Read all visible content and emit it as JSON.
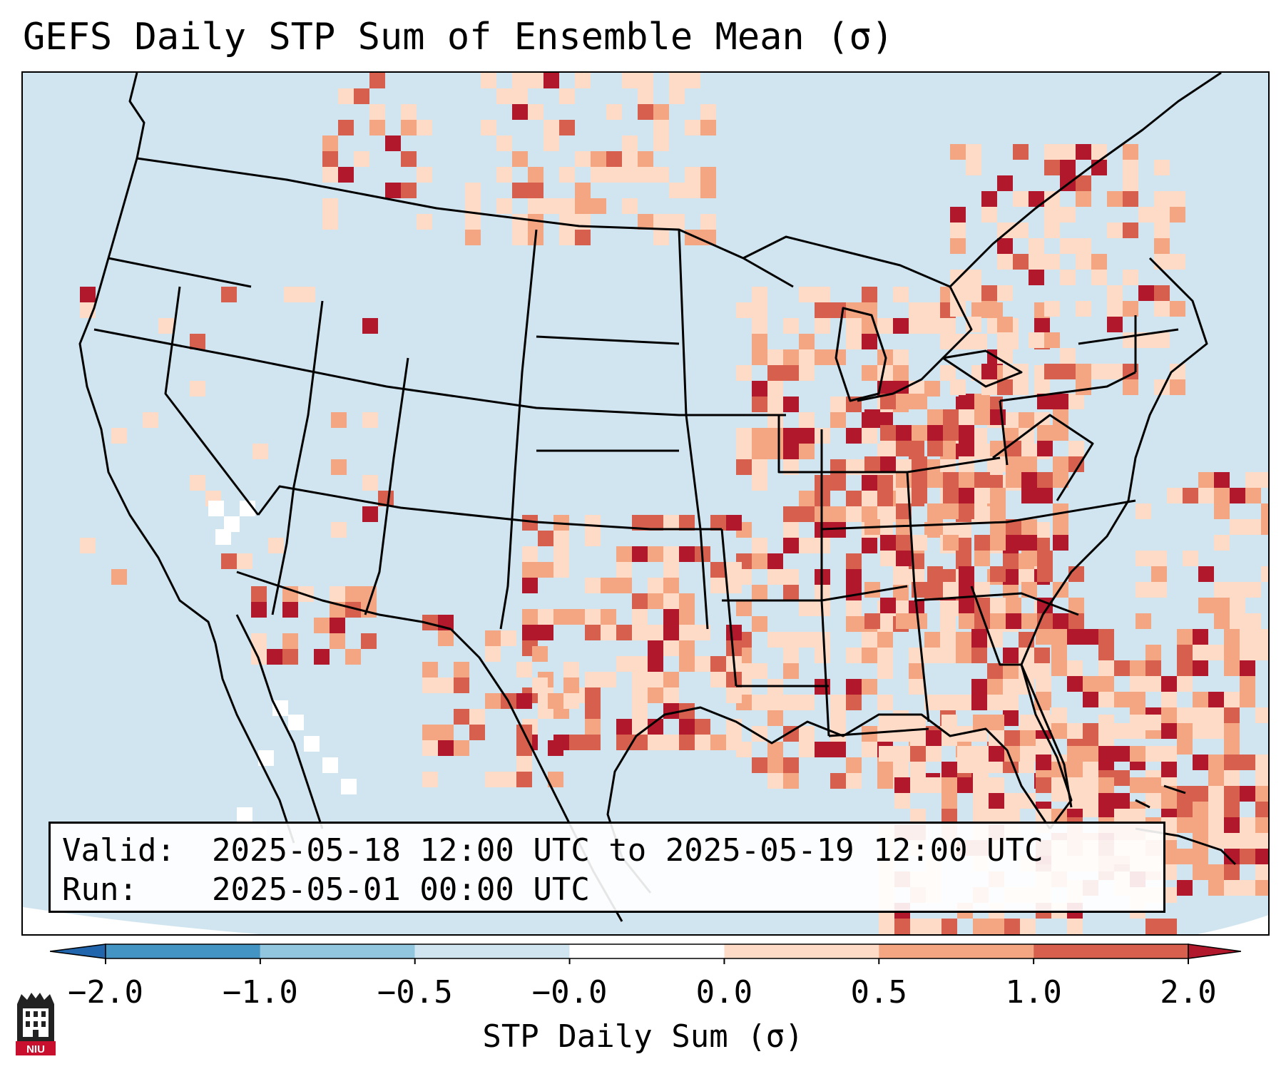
{
  "title": "GEFS Daily STP Sum of Ensemble Mean (σ)",
  "info": {
    "valid_label": "Valid:",
    "valid_value": "2025-05-18 12:00 UTC to 2025-05-19 12:00 UTC",
    "run_label": "Run:",
    "run_value": "2025-05-01 00:00 UTC"
  },
  "colorbar": {
    "label": "STP Daily Sum (σ)",
    "ticks": [
      "−2.0",
      "−1.0",
      "−0.5",
      "−0.0",
      "0.0",
      "0.5",
      "1.0",
      "2.0"
    ],
    "colors": [
      "#2166ac",
      "#4393c3",
      "#92c5de",
      "#d1e5f0",
      "#ffffff",
      "#fddbc7",
      "#f4a582",
      "#d6604d",
      "#b2182b"
    ]
  },
  "logo": {
    "text": "NIU"
  }
}
